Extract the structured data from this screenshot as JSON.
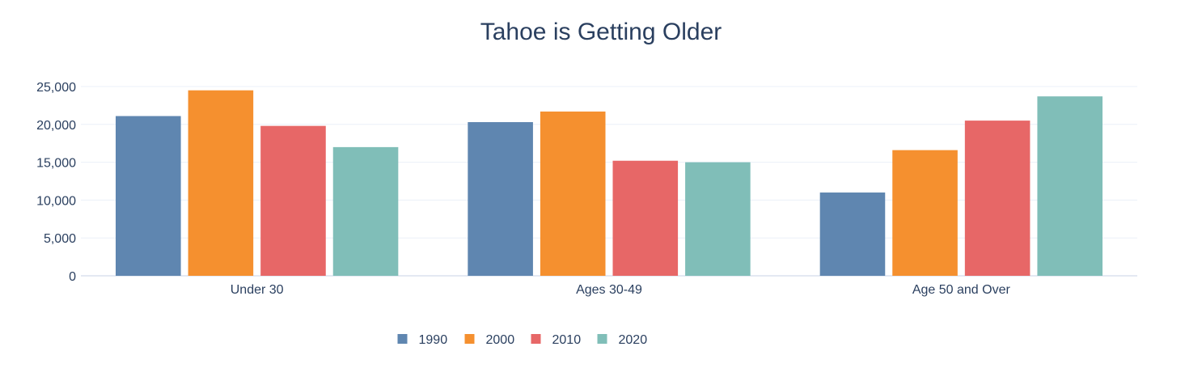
{
  "chart_data": {
    "type": "bar",
    "title": "Tahoe is Getting Older",
    "categories": [
      "Under 30",
      "Ages 30-49",
      "Age 50 and Over"
    ],
    "series": [
      {
        "name": "1990",
        "color": "#5f86b0",
        "values": [
          21100,
          20300,
          11000
        ]
      },
      {
        "name": "2000",
        "color": "#f5902f",
        "values": [
          24500,
          21700,
          16600
        ]
      },
      {
        "name": "2010",
        "color": "#e76767",
        "values": [
          19800,
          15200,
          20500
        ]
      },
      {
        "name": "2020",
        "color": "#80beb8",
        "values": [
          17000,
          15000,
          23700
        ]
      }
    ],
    "ylim": [
      0,
      25000
    ],
    "yticks": [
      0,
      5000,
      10000,
      15000,
      20000,
      25000
    ],
    "ytick_labels": [
      "0",
      "5,000",
      "10,000",
      "15,000",
      "20,000",
      "25,000"
    ],
    "grid": true,
    "legend_placement": "bottom-center",
    "text_color": "#2a3f5f",
    "grid_color": "#ebf0f8"
  }
}
